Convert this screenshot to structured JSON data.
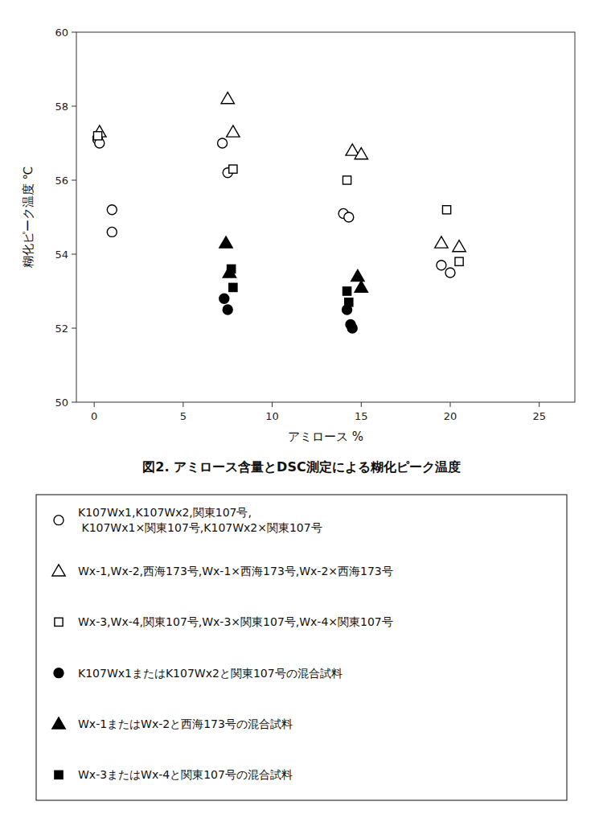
{
  "chart_data": {
    "type": "scatter",
    "title": "図2. アミロース含量とDSC測定による糊化ピーク温度",
    "xlabel": "アミロース %",
    "ylabel": "糊化ピーク温度 ℃",
    "xlim": [
      -1,
      27
    ],
    "ylim": [
      50,
      60
    ],
    "xticks": [
      0,
      5,
      10,
      15,
      20,
      25
    ],
    "yticks": [
      50,
      52,
      54,
      56,
      58,
      60
    ],
    "legend": "bottom",
    "series": [
      {
        "name": "K107Wx1,K107Wx2,関東107号,\n K107Wx1×関東107号,K107Wx2×関東107号",
        "marker": "circle-open",
        "color": "black",
        "x": [
          0.2,
          0.3,
          1.0,
          1.0,
          7.2,
          7.5,
          14.0,
          14.3,
          19.5,
          20.0
        ],
        "values": [
          57.1,
          57.0,
          55.2,
          54.6,
          57.0,
          56.2,
          55.1,
          55.0,
          53.7,
          53.5
        ]
      },
      {
        "name": "Wx-1,Wx-2,西海173号,Wx-1×西海173号,Wx-2×西海173号",
        "marker": "triangle-open",
        "color": "black",
        "x": [
          0.3,
          7.5,
          7.8,
          14.5,
          15.0,
          19.5,
          20.5
        ],
        "values": [
          57.3,
          58.2,
          57.3,
          56.8,
          56.7,
          54.3,
          54.2
        ]
      },
      {
        "name": "Wx-3,Wx-4,関東107号,Wx-3×関東107号,Wx-4×関東107号",
        "marker": "square-open",
        "color": "black",
        "x": [
          0.2,
          7.8,
          14.2,
          19.8,
          20.5
        ],
        "values": [
          57.2,
          56.3,
          56.0,
          55.2,
          53.8
        ]
      },
      {
        "name": "K107Wx1またはK107Wx2と関東107号の混合試料",
        "marker": "circle",
        "color": "black",
        "x": [
          7.3,
          7.5,
          14.2,
          14.4,
          14.5
        ],
        "values": [
          52.8,
          52.5,
          52.5,
          52.1,
          52.0
        ]
      },
      {
        "name": "Wx-1またはWx-2と西海173号の混合試料",
        "marker": "triangle",
        "color": "black",
        "x": [
          7.4,
          7.6,
          14.8,
          15.0
        ],
        "values": [
          54.3,
          53.5,
          53.4,
          53.1
        ]
      },
      {
        "name": "Wx-3またはWx-4と関東107号の混合試料",
        "marker": "square",
        "color": "black",
        "x": [
          7.7,
          7.8,
          14.2,
          14.3
        ],
        "values": [
          53.6,
          53.1,
          53.0,
          52.7
        ]
      }
    ]
  }
}
